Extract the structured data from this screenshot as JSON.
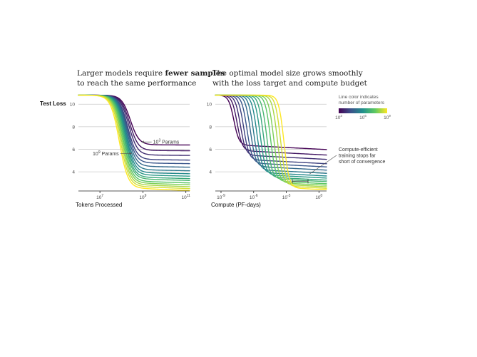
{
  "chart_data": [
    {
      "type": "line",
      "title_parts": [
        {
          "text": "Larger models require ",
          "bold": false
        },
        {
          "text": "fewer samples",
          "bold": true
        },
        {
          "text": "to reach the same performance",
          "bold": false,
          "newline": true
        }
      ],
      "ylabel": "Test Loss",
      "xlabel": "Tokens Processed",
      "xscale": "log",
      "xlim": [
        1000000.0,
        150000000000.0
      ],
      "ylim": [
        2.3,
        10.9
      ],
      "yticks": [
        4,
        6,
        8,
        10
      ],
      "xticks": [
        {
          "value": 10000000.0,
          "base": "10",
          "exp": "7"
        },
        {
          "value": 1000000000.0,
          "base": "10",
          "exp": "9"
        },
        {
          "value": 100000000000.0,
          "base": "10",
          "exp": "11"
        }
      ],
      "grid": "horizontal",
      "colorbar_range": [
        3,
        9
      ],
      "series": [
        {
          "param_exp": 3.0,
          "plateau": 6.4,
          "x_center": 260000000.0
        },
        {
          "param_exp": 3.4,
          "plateau": 5.9,
          "x_center": 240000000.0
        },
        {
          "param_exp": 3.8,
          "plateau": 5.5,
          "x_center": 220000000.0
        },
        {
          "param_exp": 4.2,
          "plateau": 5.1,
          "x_center": 200000000.0
        },
        {
          "param_exp": 4.6,
          "plateau": 4.8,
          "x_center": 190000000.0
        },
        {
          "param_exp": 5.0,
          "plateau": 4.5,
          "x_center": 180000000.0
        },
        {
          "param_exp": 5.4,
          "plateau": 4.2,
          "x_center": 170000000.0
        },
        {
          "param_exp": 5.8,
          "plateau": 3.95,
          "x_center": 160000000.0
        },
        {
          "param_exp": 6.2,
          "plateau": 3.75,
          "x_center": 150000000.0
        },
        {
          "param_exp": 6.6,
          "plateau": 3.55,
          "x_center": 140000000.0
        },
        {
          "param_exp": 7.0,
          "plateau": 3.4,
          "x_center": 130000000.0
        },
        {
          "param_exp": 7.4,
          "plateau": 3.2,
          "x_center": 120000000.0
        },
        {
          "param_exp": 7.8,
          "plateau": 3.05,
          "x_center": 110000000.0
        },
        {
          "param_exp": 8.2,
          "plateau": 2.9,
          "x_center": 100000000.0
        },
        {
          "param_exp": 8.6,
          "plateau": 2.75,
          "x_center": 90000000.0
        },
        {
          "param_exp": 9.0,
          "plateau": 2.6,
          "x_center": 80000000.0
        }
      ],
      "annotations": [
        {
          "text_base": "10",
          "text_exp": "3",
          "text_suffix": " Params",
          "x": 750000000.0,
          "y": 6.65,
          "target_x": 750000000.0,
          "target_y": 6.65
        },
        {
          "text_base": "10",
          "text_exp": "9",
          "text_suffix": " Params",
          "x": 350000000.0,
          "y": 5.0,
          "target_x": 350000000.0,
          "target_y": 5.0
        }
      ]
    },
    {
      "type": "line",
      "title_parts": [
        {
          "text": "The optimal model size grows smoothly",
          "bold": false
        },
        {
          "text": "with the loss target and compute budget",
          "bold": false,
          "newline": true
        }
      ],
      "xlabel": "Compute (PF-days)",
      "xscale": "log",
      "xlim": [
        3e-10,
        5
      ],
      "ylim": [
        2.3,
        10.9
      ],
      "yticks": [
        4,
        6,
        8,
        10
      ],
      "xticks": [
        {
          "value": 1e-09,
          "base": "10",
          "exp": "-9"
        },
        {
          "value": 1e-06,
          "base": "10",
          "exp": "-6"
        },
        {
          "value": 0.001,
          "base": "10",
          "exp": "-3"
        },
        {
          "value": 1,
          "base": "10",
          "exp": "0"
        }
      ],
      "grid": "horizontal",
      "series": [
        {
          "param_exp": 3.0,
          "plateau": 6.4,
          "x_center": 1.5e-08
        },
        {
          "param_exp": 3.4,
          "plateau": 5.9,
          "x_center": 3e-08
        },
        {
          "param_exp": 3.8,
          "plateau": 5.5,
          "x_center": 6e-08
        },
        {
          "param_exp": 4.2,
          "plateau": 5.1,
          "x_center": 1.2e-07
        },
        {
          "param_exp": 4.6,
          "plateau": 4.8,
          "x_center": 2.4e-07
        },
        {
          "param_exp": 5.0,
          "plateau": 4.5,
          "x_center": 5e-07
        },
        {
          "param_exp": 5.4,
          "plateau": 4.2,
          "x_center": 1e-06
        },
        {
          "param_exp": 5.8,
          "plateau": 3.95,
          "x_center": 2e-06
        },
        {
          "param_exp": 6.2,
          "plateau": 3.75,
          "x_center": 4e-06
        },
        {
          "param_exp": 6.6,
          "plateau": 3.55,
          "x_center": 8e-06
        },
        {
          "param_exp": 7.0,
          "plateau": 3.4,
          "x_center": 1.6e-05
        },
        {
          "param_exp": 7.4,
          "plateau": 3.2,
          "x_center": 3.5e-05
        },
        {
          "param_exp": 7.8,
          "plateau": 3.05,
          "x_center": 7e-05
        },
        {
          "param_exp": 8.2,
          "plateau": 2.9,
          "x_center": 0.00015
        },
        {
          "param_exp": 8.6,
          "plateau": 2.75,
          "x_center": 0.0003
        },
        {
          "param_exp": 9.0,
          "plateau": 2.6,
          "x_center": 0.0006
        }
      ],
      "annotation": {
        "lines": [
          "Compute-efficient",
          "training stops far",
          "short of convergence"
        ],
        "target_x": 0.1,
        "target_y": 3.55
      }
    }
  ],
  "colorbar": {
    "title_lines": [
      "Line color indicates",
      "number of parameters"
    ],
    "ticks": [
      {
        "value": 3,
        "base": "10",
        "exp": "3"
      },
      {
        "value": 6,
        "base": "10",
        "exp": "6"
      },
      {
        "value": 9,
        "base": "10",
        "exp": "9"
      }
    ],
    "colors": [
      "#440154",
      "#3b528b",
      "#21918c",
      "#5ec962",
      "#fde725"
    ]
  }
}
